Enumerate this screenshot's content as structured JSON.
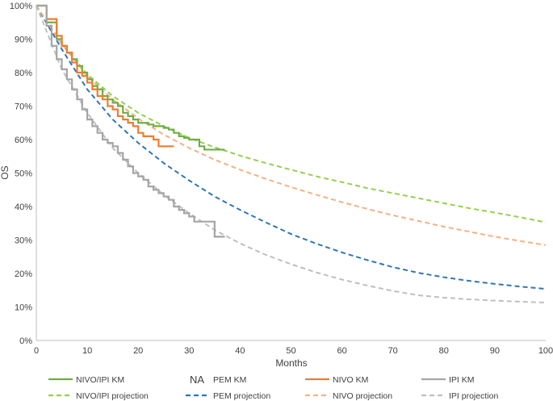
{
  "chart_data": {
    "type": "line",
    "title": "",
    "xlabel": "Months",
    "ylabel": "OS",
    "xlim": [
      0,
      100
    ],
    "ylim": [
      0,
      100
    ],
    "x_ticks": [
      0,
      10,
      20,
      30,
      40,
      50,
      60,
      70,
      80,
      90,
      100
    ],
    "y_ticks": [
      0,
      10,
      20,
      30,
      40,
      50,
      60,
      70,
      80,
      90,
      100
    ],
    "x_tick_labels": [
      "0",
      "10",
      "20",
      "30",
      "40",
      "50",
      "60",
      "70",
      "80",
      "90",
      "100"
    ],
    "y_tick_labels": [
      "0%",
      "10%",
      "20%",
      "30%",
      "40%",
      "50%",
      "60%",
      "70%",
      "80%",
      "90%",
      "100%"
    ],
    "grid": false,
    "legend_position": "bottom",
    "series": [
      {
        "name": "NIVO/IPI KM",
        "style": "solid",
        "color": "#70ad47",
        "x": [
          0,
          2,
          4,
          5,
          6,
          7,
          8,
          9,
          10,
          11,
          12,
          13,
          14,
          15,
          16,
          17,
          18,
          19,
          20,
          21,
          22,
          23,
          24,
          25,
          26,
          27,
          28,
          29,
          30,
          31,
          32,
          33,
          34,
          35,
          36,
          37
        ],
        "y": [
          100,
          95,
          90,
          88,
          86,
          84,
          82,
          80,
          78,
          76,
          75,
          73,
          72,
          71,
          70,
          68,
          67,
          66,
          65,
          65,
          64.5,
          64,
          64,
          63.5,
          63,
          62,
          61,
          60.5,
          60,
          60,
          58,
          57,
          57,
          57,
          57,
          57
        ]
      },
      {
        "name": "PEM KM",
        "style": "solid",
        "color": "#4472c4",
        "value_label": "NA",
        "x": [],
        "y": []
      },
      {
        "name": "NIVO KM",
        "style": "solid",
        "color": "#ed7d31",
        "x": [
          0,
          2,
          4,
          5,
          6,
          7,
          8,
          9,
          10,
          11,
          12,
          13,
          14,
          15,
          16,
          17,
          18,
          19,
          20,
          21,
          22,
          23,
          24,
          25,
          26,
          27
        ],
        "y": [
          100,
          96,
          91,
          88,
          86,
          83,
          80,
          79,
          77,
          75,
          73,
          72,
          70,
          69,
          67,
          66,
          65,
          64,
          62,
          61,
          61,
          60,
          58,
          58,
          58,
          58
        ]
      },
      {
        "name": "IPI KM",
        "style": "solid",
        "color": "#a5a5a5",
        "x": [
          0,
          2,
          3,
          4,
          5,
          6,
          7,
          8,
          9,
          10,
          11,
          12,
          13,
          14,
          15,
          16,
          17,
          18,
          19,
          20,
          21,
          22,
          23,
          24,
          25,
          26,
          27,
          28,
          29,
          30,
          31,
          32,
          33,
          34,
          35,
          36,
          37
        ],
        "y": [
          100,
          94,
          88,
          84,
          81,
          78,
          75,
          72,
          69,
          66,
          64,
          62,
          60,
          59,
          58,
          56,
          54,
          52,
          50,
          49,
          48,
          46,
          45,
          44,
          43,
          42,
          40,
          39,
          38,
          37,
          35.5,
          35.5,
          35.5,
          35.5,
          31,
          31,
          31
        ]
      },
      {
        "name": "NIVO/IPI projection",
        "style": "dashed",
        "color": "#92d050",
        "x": [
          0,
          5,
          10,
          15,
          20,
          25,
          30,
          35,
          40,
          45,
          50,
          55,
          60,
          65,
          70,
          75,
          80,
          85,
          90,
          95,
          100
        ],
        "y": [
          100,
          88.5,
          79.5,
          73,
          68,
          64,
          60.5,
          57.7,
          55.2,
          53,
          51,
          49,
          47.3,
          45.5,
          44,
          42.5,
          41,
          39.5,
          38.2,
          36.8,
          35.3
        ]
      },
      {
        "name": "PEM projection",
        "style": "dashed",
        "color": "#2e75b6",
        "x": [
          0,
          5,
          10,
          15,
          20,
          25,
          30,
          35,
          40,
          45,
          50,
          55,
          60,
          65,
          70,
          75,
          80,
          85,
          90,
          95,
          100
        ],
        "y": [
          100,
          87,
          75,
          66,
          59,
          53,
          47.8,
          43,
          39,
          35.3,
          31.8,
          28.9,
          26.3,
          24,
          21.9,
          20.2,
          18.9,
          17.8,
          16.9,
          16.1,
          15.4
        ]
      },
      {
        "name": "NIVO projection",
        "style": "dashed",
        "color": "#f4b183",
        "x": [
          0,
          5,
          10,
          15,
          20,
          25,
          30,
          35,
          40,
          45,
          50,
          55,
          60,
          65,
          70,
          75,
          80,
          85,
          90,
          95,
          100
        ],
        "y": [
          100,
          88.5,
          79,
          72,
          66.3,
          61.5,
          57.5,
          54,
          51,
          48.3,
          45.8,
          43.5,
          41.3,
          39.3,
          37.4,
          35.7,
          34,
          32.5,
          31,
          29.7,
          28.5
        ]
      },
      {
        "name": "IPI projection",
        "style": "dashed",
        "color": "#bfbfbf",
        "x": [
          0,
          5,
          10,
          15,
          20,
          25,
          30,
          35,
          40,
          45,
          50,
          55,
          60,
          65,
          70,
          75,
          80,
          85,
          90,
          95,
          100
        ],
        "y": [
          100,
          81,
          68,
          57.5,
          50,
          43.5,
          38,
          33,
          29,
          25.6,
          22.8,
          20.3,
          18.2,
          16.4,
          14.8,
          13.5,
          12.8,
          12.3,
          11.9,
          11.6,
          11.3
        ]
      }
    ]
  }
}
